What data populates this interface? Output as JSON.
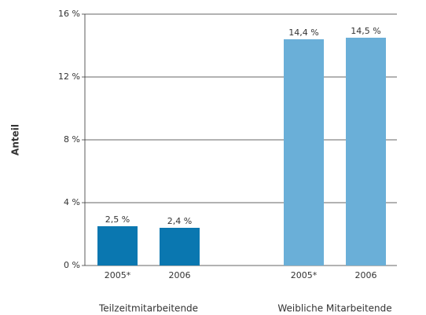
{
  "chart_data": {
    "type": "bar",
    "ylabel": "Anteil",
    "ylim": [
      0,
      16
    ],
    "yticks": [
      {
        "value": 0,
        "label": "0 %"
      },
      {
        "value": 4,
        "label": "4 %"
      },
      {
        "value": 8,
        "label": "8 %"
      },
      {
        "value": 12,
        "label": "12 %"
      },
      {
        "value": 16,
        "label": "16 %"
      }
    ],
    "grid": true,
    "groups": [
      {
        "name": "Teilzeitmitarbeitende",
        "color": "#0a77b0",
        "categories": [
          "2005*",
          "2006"
        ],
        "values": [
          2.5,
          2.4
        ],
        "value_labels": [
          "2,5 %",
          "2,4 %"
        ]
      },
      {
        "name": "Weibliche Mitarbeitende",
        "color": "#6aafd8",
        "categories": [
          "2005*",
          "2006"
        ],
        "values": [
          14.4,
          14.5
        ],
        "value_labels": [
          "14,4 %",
          "14,5 %"
        ]
      }
    ]
  }
}
